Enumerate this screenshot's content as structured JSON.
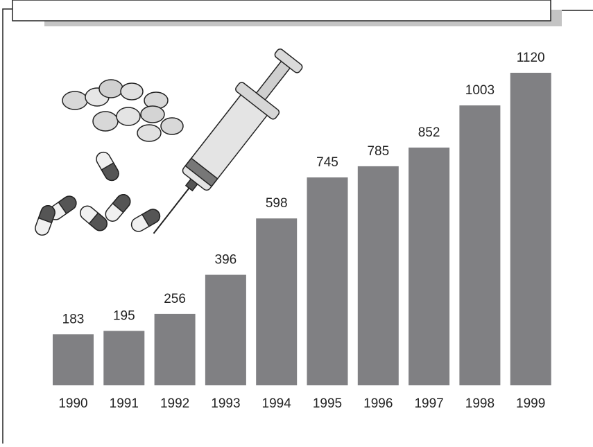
{
  "chart_data": {
    "type": "bar",
    "categories": [
      "1990",
      "1991",
      "1992",
      "1993",
      "1994",
      "1995",
      "1996",
      "1997",
      "1998",
      "1999"
    ],
    "values": [
      183,
      195,
      256,
      396,
      598,
      745,
      785,
      852,
      1003,
      1120
    ],
    "color": "#808083"
  }
}
